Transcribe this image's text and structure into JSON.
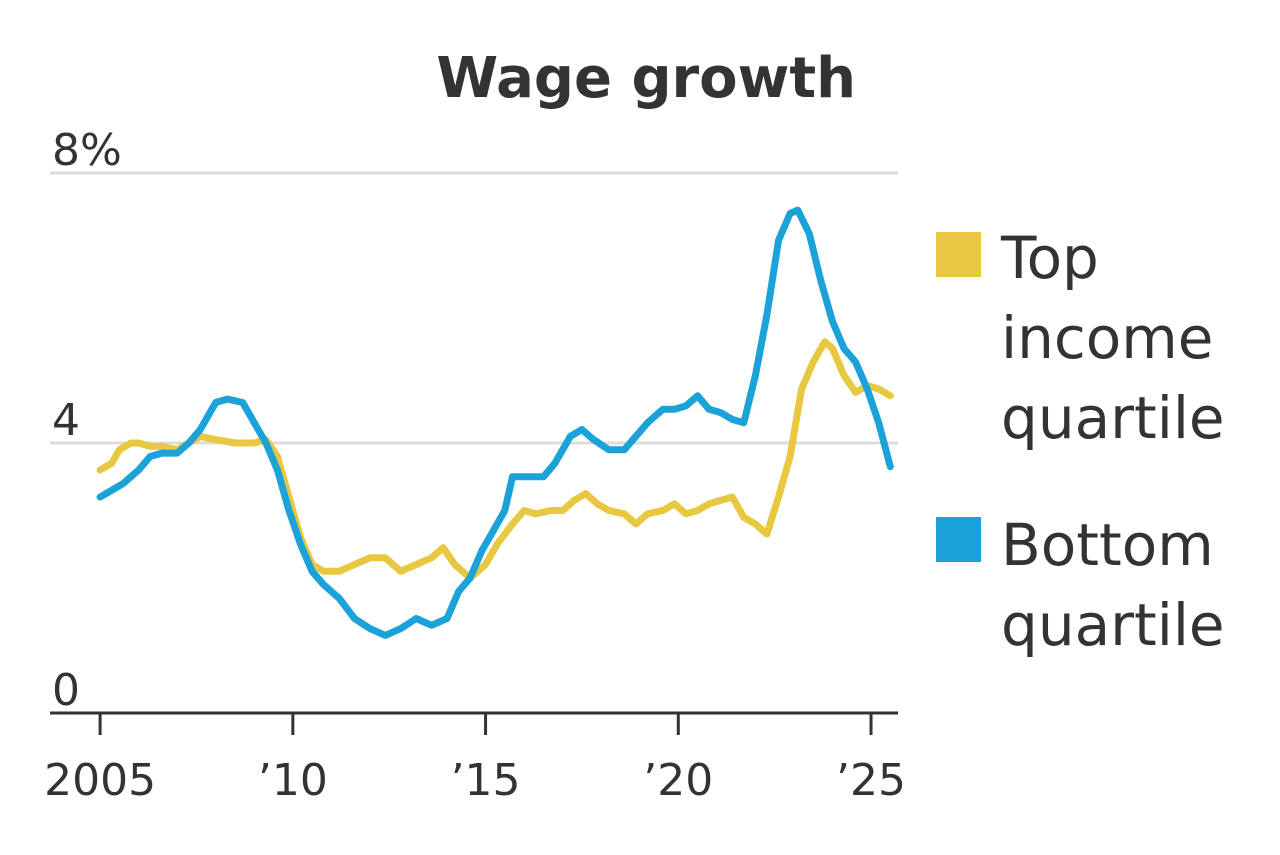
{
  "chart_data": {
    "type": "line",
    "title": "Wage growth",
    "xlabel": "",
    "ylabel": "",
    "xlim": [
      2003.7,
      2025.7
    ],
    "ylim": [
      0,
      8
    ],
    "y_ticks": [
      {
        "value": 0,
        "label": "0"
      },
      {
        "value": 4,
        "label": "4"
      },
      {
        "value": 8,
        "label": "8%"
      }
    ],
    "x_ticks": [
      {
        "value": 2005,
        "label": "2005"
      },
      {
        "value": 2010,
        "label": "’10"
      },
      {
        "value": 2015,
        "label": "’15"
      },
      {
        "value": 2020,
        "label": "’20"
      },
      {
        "value": 2025,
        "label": "’25"
      }
    ],
    "gridlines": [
      4,
      8
    ],
    "series": [
      {
        "name": "Top income quartile",
        "legend_label": [
          "Top",
          "income",
          "quartile"
        ],
        "color": "#e8c840",
        "points": [
          [
            2005.0,
            3.6
          ],
          [
            2005.3,
            3.7
          ],
          [
            2005.5,
            3.9
          ],
          [
            2005.8,
            4.0
          ],
          [
            2006.0,
            4.0
          ],
          [
            2006.3,
            3.95
          ],
          [
            2006.6,
            3.95
          ],
          [
            2007.0,
            3.9
          ],
          [
            2007.3,
            4.0
          ],
          [
            2007.6,
            4.1
          ],
          [
            2008.0,
            4.05
          ],
          [
            2008.5,
            4.0
          ],
          [
            2009.0,
            4.0
          ],
          [
            2009.3,
            4.05
          ],
          [
            2009.6,
            3.8
          ],
          [
            2009.9,
            3.2
          ],
          [
            2010.2,
            2.6
          ],
          [
            2010.5,
            2.2
          ],
          [
            2010.8,
            2.1
          ],
          [
            2011.2,
            2.1
          ],
          [
            2011.6,
            2.2
          ],
          [
            2012.0,
            2.3
          ],
          [
            2012.4,
            2.3
          ],
          [
            2012.8,
            2.1
          ],
          [
            2013.2,
            2.2
          ],
          [
            2013.6,
            2.3
          ],
          [
            2013.9,
            2.45
          ],
          [
            2014.2,
            2.2
          ],
          [
            2014.6,
            2.0
          ],
          [
            2015.0,
            2.2
          ],
          [
            2015.3,
            2.5
          ],
          [
            2015.7,
            2.8
          ],
          [
            2016.0,
            3.0
          ],
          [
            2016.3,
            2.95
          ],
          [
            2016.7,
            3.0
          ],
          [
            2017.0,
            3.0
          ],
          [
            2017.3,
            3.15
          ],
          [
            2017.6,
            3.25
          ],
          [
            2017.9,
            3.1
          ],
          [
            2018.2,
            3.0
          ],
          [
            2018.6,
            2.95
          ],
          [
            2018.9,
            2.8
          ],
          [
            2019.2,
            2.95
          ],
          [
            2019.6,
            3.0
          ],
          [
            2019.9,
            3.1
          ],
          [
            2020.2,
            2.95
          ],
          [
            2020.5,
            3.0
          ],
          [
            2020.8,
            3.1
          ],
          [
            2021.1,
            3.15
          ],
          [
            2021.4,
            3.2
          ],
          [
            2021.7,
            2.9
          ],
          [
            2022.0,
            2.8
          ],
          [
            2022.3,
            2.65
          ],
          [
            2022.6,
            3.2
          ],
          [
            2022.9,
            3.8
          ],
          [
            2023.2,
            4.8
          ],
          [
            2023.5,
            5.2
          ],
          [
            2023.8,
            5.5
          ],
          [
            2024.0,
            5.4
          ],
          [
            2024.3,
            5.0
          ],
          [
            2024.6,
            4.75
          ],
          [
            2024.9,
            4.85
          ],
          [
            2025.2,
            4.8
          ],
          [
            2025.5,
            4.7
          ]
        ]
      },
      {
        "name": "Bottom quartile",
        "legend_label": [
          "Bottom",
          "quartile"
        ],
        "color": "#1ba2d8",
        "points": [
          [
            2005.0,
            3.2
          ],
          [
            2005.3,
            3.3
          ],
          [
            2005.6,
            3.4
          ],
          [
            2006.0,
            3.6
          ],
          [
            2006.3,
            3.8
          ],
          [
            2006.6,
            3.85
          ],
          [
            2007.0,
            3.85
          ],
          [
            2007.3,
            4.0
          ],
          [
            2007.6,
            4.2
          ],
          [
            2008.0,
            4.6
          ],
          [
            2008.3,
            4.65
          ],
          [
            2008.7,
            4.6
          ],
          [
            2009.0,
            4.3
          ],
          [
            2009.3,
            4.0
          ],
          [
            2009.6,
            3.6
          ],
          [
            2009.9,
            3.0
          ],
          [
            2010.2,
            2.5
          ],
          [
            2010.5,
            2.1
          ],
          [
            2010.8,
            1.9
          ],
          [
            2011.2,
            1.7
          ],
          [
            2011.6,
            1.4
          ],
          [
            2012.0,
            1.25
          ],
          [
            2012.4,
            1.15
          ],
          [
            2012.8,
            1.25
          ],
          [
            2013.2,
            1.4
          ],
          [
            2013.6,
            1.3
          ],
          [
            2014.0,
            1.4
          ],
          [
            2014.3,
            1.8
          ],
          [
            2014.6,
            2.0
          ],
          [
            2014.9,
            2.4
          ],
          [
            2015.2,
            2.7
          ],
          [
            2015.5,
            3.0
          ],
          [
            2015.7,
            3.5
          ],
          [
            2016.0,
            3.5
          ],
          [
            2016.5,
            3.5
          ],
          [
            2016.8,
            3.7
          ],
          [
            2017.2,
            4.1
          ],
          [
            2017.5,
            4.2
          ],
          [
            2017.8,
            4.05
          ],
          [
            2018.2,
            3.9
          ],
          [
            2018.6,
            3.9
          ],
          [
            2018.9,
            4.1
          ],
          [
            2019.2,
            4.3
          ],
          [
            2019.6,
            4.5
          ],
          [
            2019.9,
            4.5
          ],
          [
            2020.2,
            4.55
          ],
          [
            2020.5,
            4.7
          ],
          [
            2020.8,
            4.5
          ],
          [
            2021.1,
            4.45
          ],
          [
            2021.4,
            4.35
          ],
          [
            2021.7,
            4.3
          ],
          [
            2022.0,
            5.0
          ],
          [
            2022.3,
            5.9
          ],
          [
            2022.6,
            7.0
          ],
          [
            2022.9,
            7.4
          ],
          [
            2023.1,
            7.45
          ],
          [
            2023.4,
            7.1
          ],
          [
            2023.7,
            6.4
          ],
          [
            2024.0,
            5.8
          ],
          [
            2024.3,
            5.4
          ],
          [
            2024.6,
            5.2
          ],
          [
            2024.9,
            4.8
          ],
          [
            2025.2,
            4.3
          ],
          [
            2025.5,
            3.65
          ]
        ]
      }
    ]
  }
}
